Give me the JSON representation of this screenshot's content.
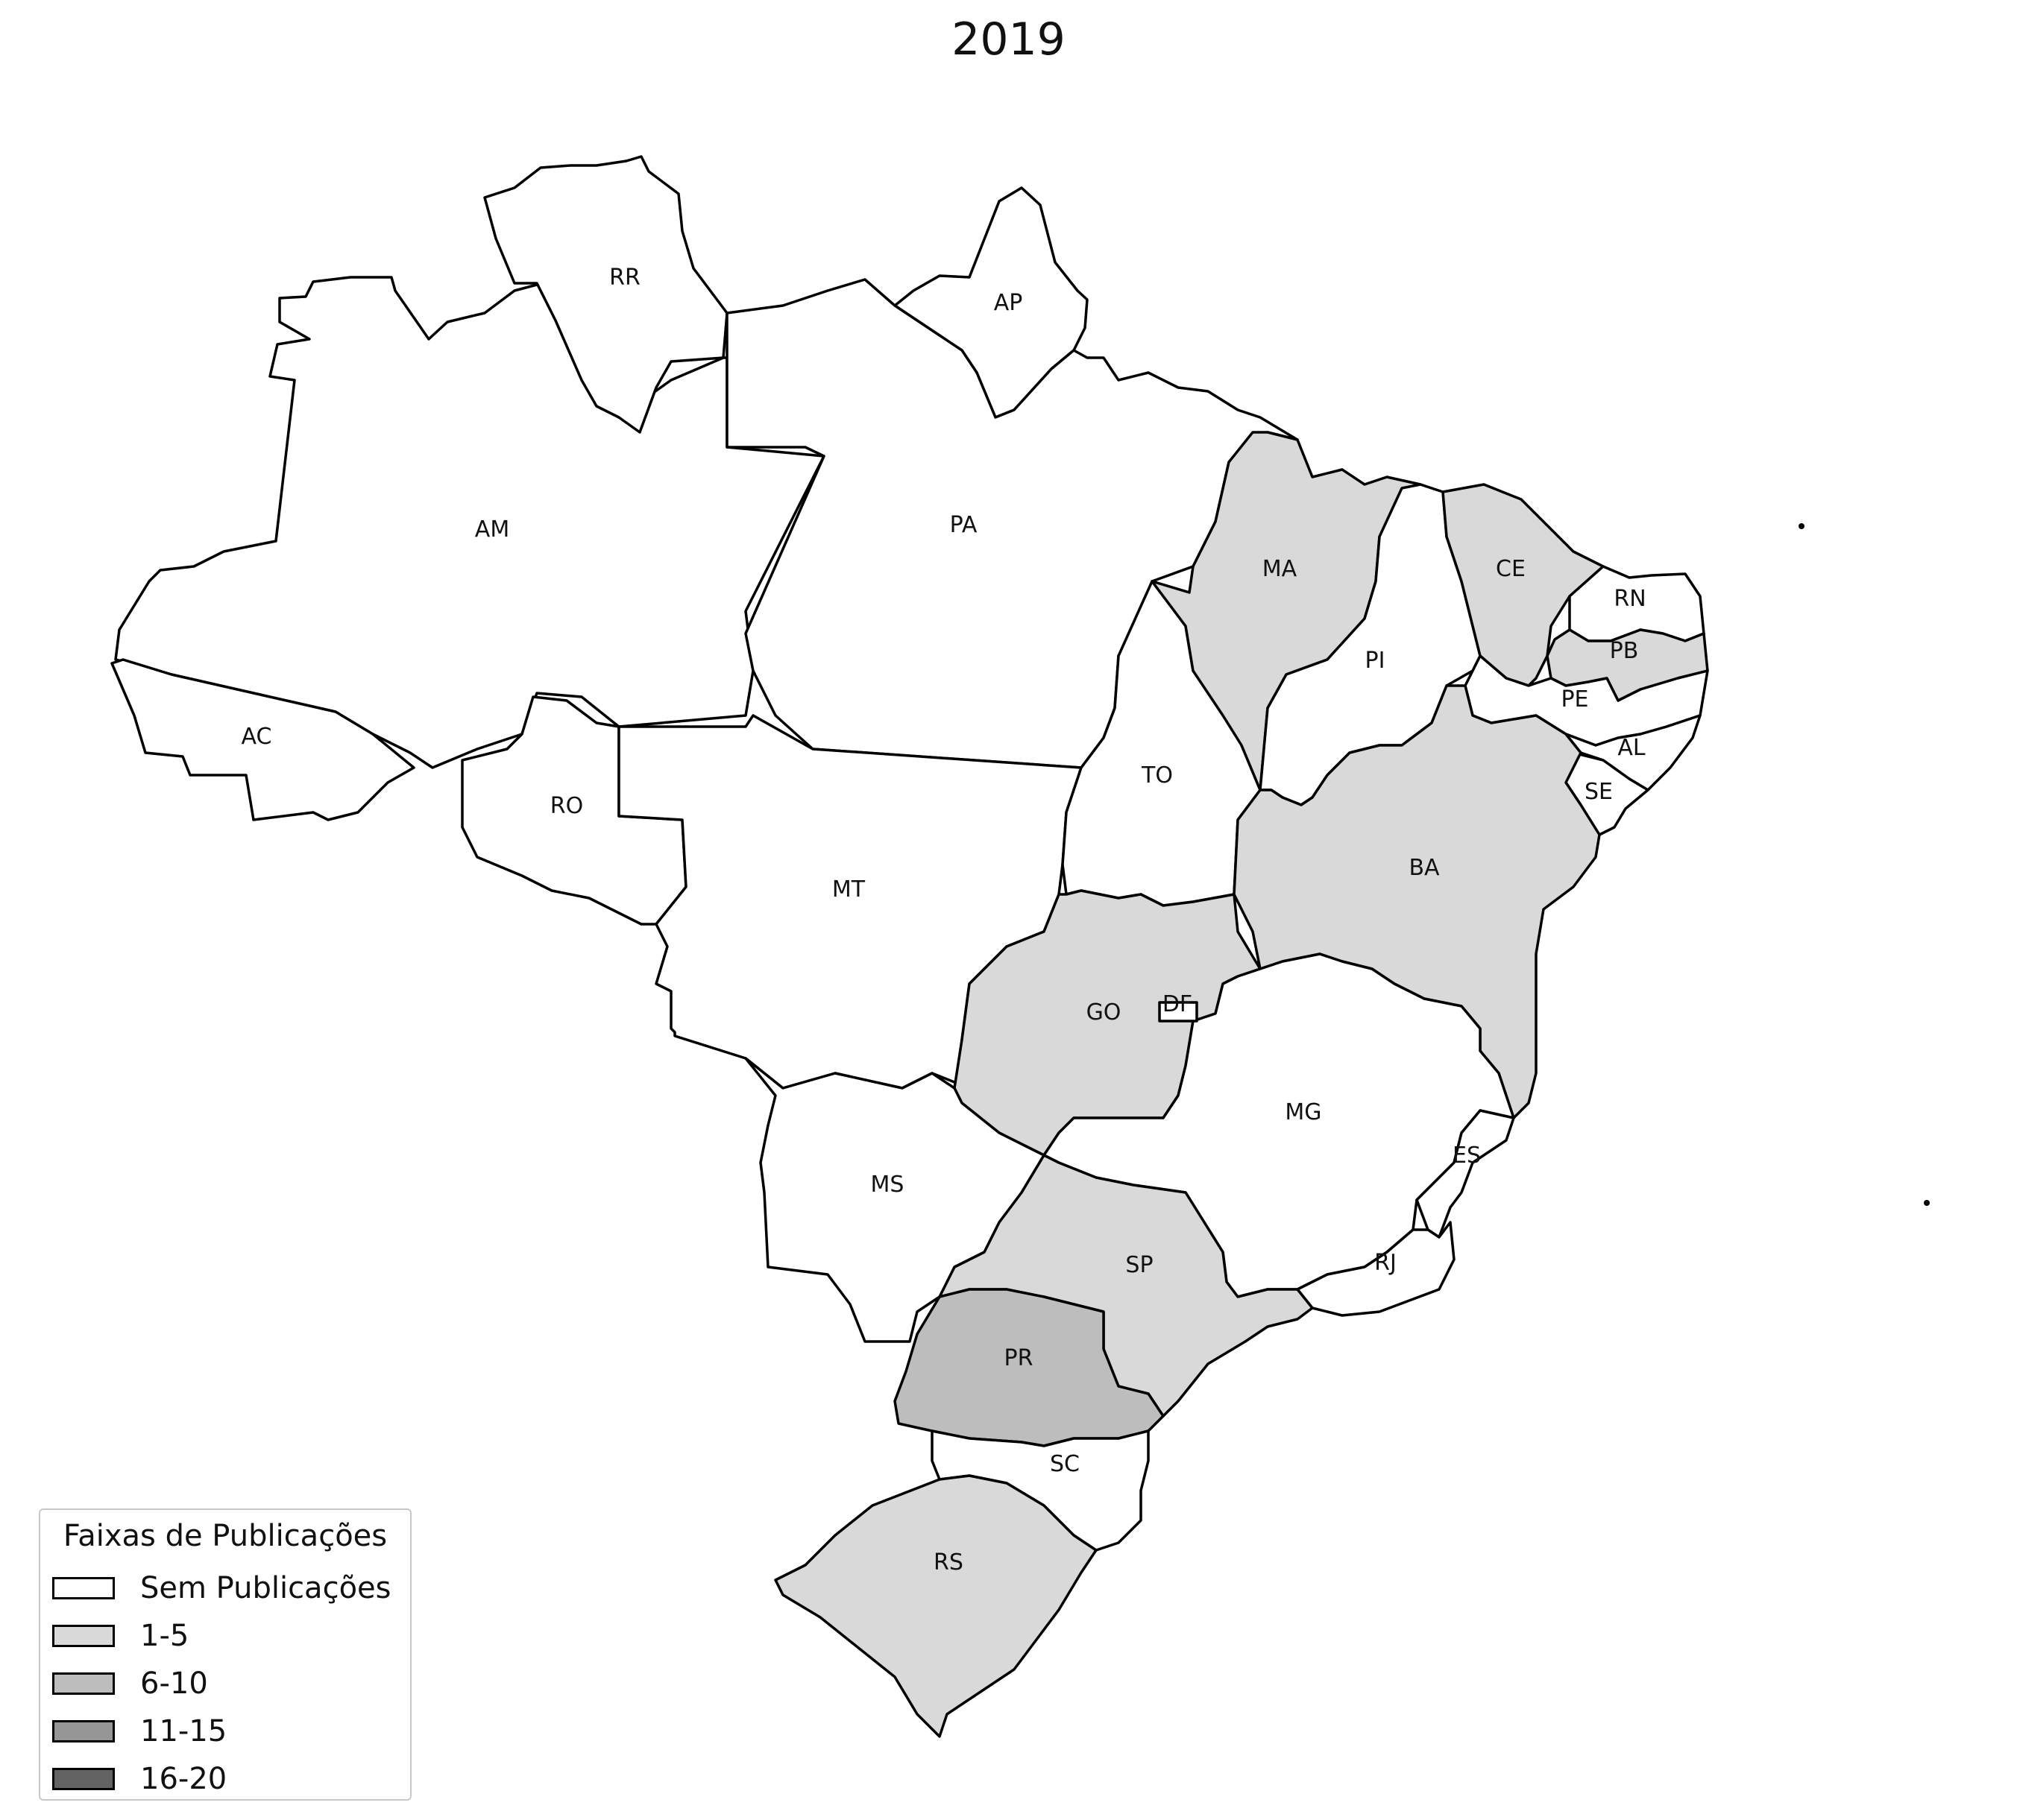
{
  "map": {
    "title": "2019",
    "colors": {
      "none": "#ffffff",
      "1-5": "#d9d9d9",
      "6-10": "#bdbdbd",
      "11-15": "#969696",
      "16-20": "#636363"
    },
    "states": [
      {
        "code": "AM",
        "label": "AM",
        "bin": "none"
      },
      {
        "code": "RR",
        "label": "RR",
        "bin": "none"
      },
      {
        "code": "AP",
        "label": "AP",
        "bin": "none"
      },
      {
        "code": "PA",
        "label": "PA",
        "bin": "none"
      },
      {
        "code": "AC",
        "label": "AC",
        "bin": "none"
      },
      {
        "code": "RO",
        "label": "RO",
        "bin": "none"
      },
      {
        "code": "MT",
        "label": "MT",
        "bin": "none"
      },
      {
        "code": "TO",
        "label": "TO",
        "bin": "none"
      },
      {
        "code": "MA",
        "label": "MA",
        "bin": "1-5"
      },
      {
        "code": "PI",
        "label": "PI",
        "bin": "none"
      },
      {
        "code": "CE",
        "label": "CE",
        "bin": "1-5"
      },
      {
        "code": "RN",
        "label": "RN",
        "bin": "none"
      },
      {
        "code": "PB",
        "label": "PB",
        "bin": "1-5"
      },
      {
        "code": "PE",
        "label": "PE",
        "bin": "none"
      },
      {
        "code": "AL",
        "label": "AL",
        "bin": "none"
      },
      {
        "code": "SE",
        "label": "SE",
        "bin": "none"
      },
      {
        "code": "BA",
        "label": "BA",
        "bin": "1-5"
      },
      {
        "code": "GO",
        "label": "GO",
        "bin": "1-5"
      },
      {
        "code": "DF",
        "label": "DF",
        "bin": "none"
      },
      {
        "code": "MG",
        "label": "MG",
        "bin": "none"
      },
      {
        "code": "ES",
        "label": "ES",
        "bin": "none"
      },
      {
        "code": "RJ",
        "label": "RJ",
        "bin": "none"
      },
      {
        "code": "SP",
        "label": "SP",
        "bin": "1-5"
      },
      {
        "code": "MS",
        "label": "MS",
        "bin": "none"
      },
      {
        "code": "PR",
        "label": "PR",
        "bin": "6-10"
      },
      {
        "code": "SC",
        "label": "SC",
        "bin": "none"
      },
      {
        "code": "RS",
        "label": "RS",
        "bin": "1-5"
      }
    ]
  },
  "legend": {
    "title": "Faixas de Publicações",
    "items": [
      {
        "label": "Sem Publicações",
        "color": "#ffffff"
      },
      {
        "label": "1-5",
        "color": "#d9d9d9"
      },
      {
        "label": "6-10",
        "color": "#bdbdbd"
      },
      {
        "label": "11-15",
        "color": "#969696"
      },
      {
        "label": "16-20",
        "color": "#636363"
      }
    ]
  }
}
